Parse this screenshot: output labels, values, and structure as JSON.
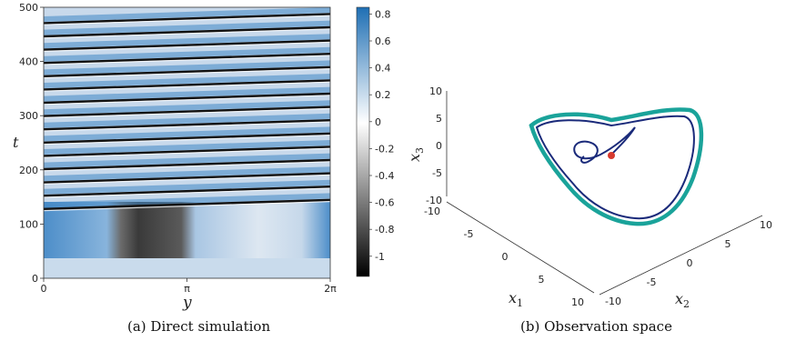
{
  "chart_data": [
    {
      "type": "heatmap",
      "xlabel": "y",
      "ylabel": "t",
      "x_ticks": [
        "0",
        "π",
        "2π"
      ],
      "y_ticks": [
        "0",
        "100",
        "200",
        "300",
        "400",
        "500"
      ],
      "xlim": [
        "0",
        "2π"
      ],
      "ylim": [
        0,
        500
      ],
      "colorbar": {
        "ticks": [
          "0.8",
          "0.6",
          "0.4",
          "0.2",
          "0",
          "-0.2",
          "-0.4",
          "-0.6",
          "-0.8",
          "-1"
        ],
        "range": [
          -1.15,
          0.85
        ],
        "colors": [
          "#000000",
          "#ffffff",
          "#1f6fb4"
        ]
      },
      "caption": "(a) Direct simulation"
    },
    {
      "type": "line",
      "projection": "3d",
      "xlabel": "x1",
      "ylabel": "x2",
      "zlabel": "x3",
      "x1_ticks": [
        "-10",
        "-5",
        "0",
        "5",
        "10"
      ],
      "x2_ticks": [
        "-10",
        "-5",
        "0",
        "5",
        "10"
      ],
      "x3_ticks": [
        "10",
        "5",
        "0",
        "-5",
        "-10"
      ],
      "series": [
        {
          "role": "transient",
          "color": "#1a2a7a"
        },
        {
          "role": "attractor",
          "color": "#1aa39a"
        }
      ],
      "marker_color": "#d63a2f",
      "caption": "(b) Observation space"
    }
  ]
}
